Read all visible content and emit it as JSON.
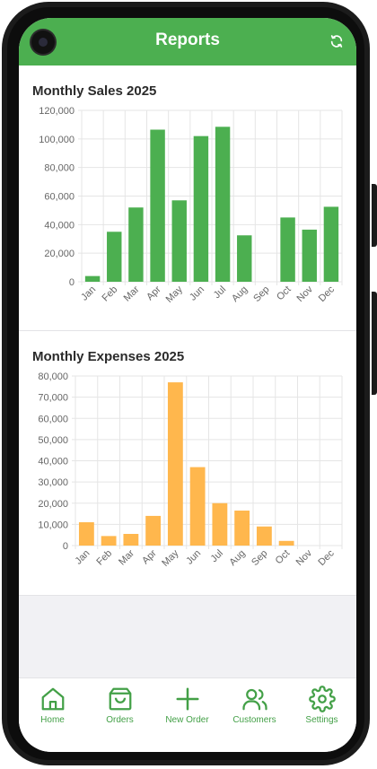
{
  "header": {
    "title": "Reports",
    "refresh_icon": "refresh-icon"
  },
  "colors": {
    "primary": "#4caf50",
    "sales_bar": "#4caf50",
    "expense_bar": "#ffb74d",
    "tab": "#43a047"
  },
  "charts": {
    "sales": {
      "title": "Monthly Sales 2025",
      "chart_data": {
        "type": "bar",
        "categories": [
          "Jan",
          "Feb",
          "Mar",
          "Apr",
          "May",
          "Jun",
          "Jul",
          "Aug",
          "Sep",
          "Oct",
          "Nov",
          "Dec"
        ],
        "values": [
          4000,
          35000,
          52000,
          106500,
          57000,
          102000,
          108500,
          32500,
          0,
          45000,
          36500,
          52500
        ],
        "ylim": [
          0,
          120000
        ],
        "ticks": [
          "0",
          "20,000",
          "40,000",
          "60,000",
          "80,000",
          "100,000",
          "120,000"
        ],
        "grid": true
      }
    },
    "expenses": {
      "title": "Monthly Expenses 2025",
      "chart_data": {
        "type": "bar",
        "categories": [
          "Jan",
          "Feb",
          "Mar",
          "Apr",
          "May",
          "Jun",
          "Jul",
          "Aug",
          "Sep",
          "Oct",
          "Nov",
          "Dec"
        ],
        "values": [
          11000,
          4500,
          5500,
          14000,
          77000,
          37000,
          20000,
          16500,
          9000,
          2200,
          0,
          0
        ],
        "ylim": [
          0,
          80000
        ],
        "ticks": [
          "0",
          "10,000",
          "20,000",
          "30,000",
          "40,000",
          "50,000",
          "60,000",
          "70,000",
          "80,000"
        ],
        "grid": true
      }
    }
  },
  "tabs": [
    {
      "label": "Home",
      "icon": "home-icon"
    },
    {
      "label": "Orders",
      "icon": "shopping-bag-icon"
    },
    {
      "label": "New Order",
      "icon": "plus-icon"
    },
    {
      "label": "Customers",
      "icon": "users-icon"
    },
    {
      "label": "Settings",
      "icon": "gear-icon"
    }
  ]
}
